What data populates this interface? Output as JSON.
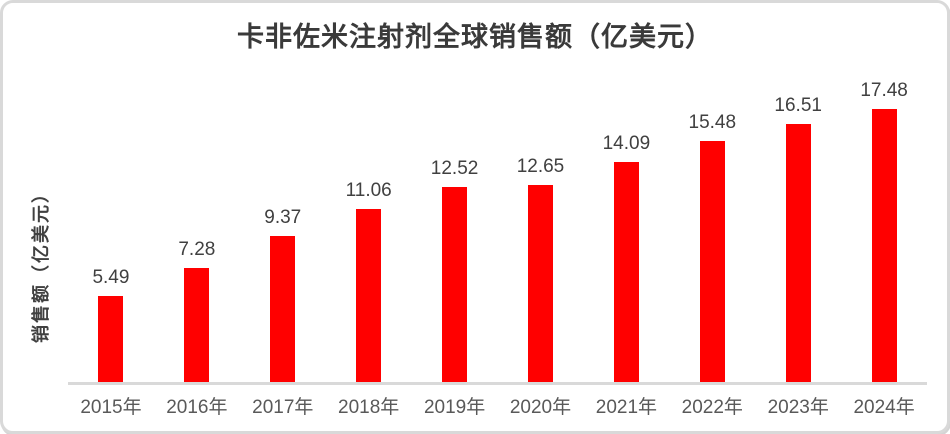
{
  "chart_data": {
    "type": "bar",
    "title": "卡非佐米注射剂全球销售额（亿美元）",
    "ylabel": "销售额（亿美元）",
    "xlabel": "",
    "categories": [
      "2015年",
      "2016年",
      "2017年",
      "2018年",
      "2019年",
      "2020年",
      "2021年",
      "2022年",
      "2023年",
      "2024年"
    ],
    "values": [
      5.49,
      7.28,
      9.37,
      11.06,
      12.52,
      12.65,
      14.09,
      15.48,
      16.51,
      17.48
    ],
    "ylim": [
      0,
      20
    ],
    "grid": false,
    "legend_position": "none",
    "data_labels": true,
    "colors": {
      "bar": "#ff0000",
      "title": "#3a3a3a",
      "value_labels": "#404040",
      "tick_labels": "#595959",
      "ylabel": "#404040",
      "axis_line": "#d9d9d9",
      "frame_border": "#d9d9d9",
      "background": "#ffffff"
    }
  }
}
